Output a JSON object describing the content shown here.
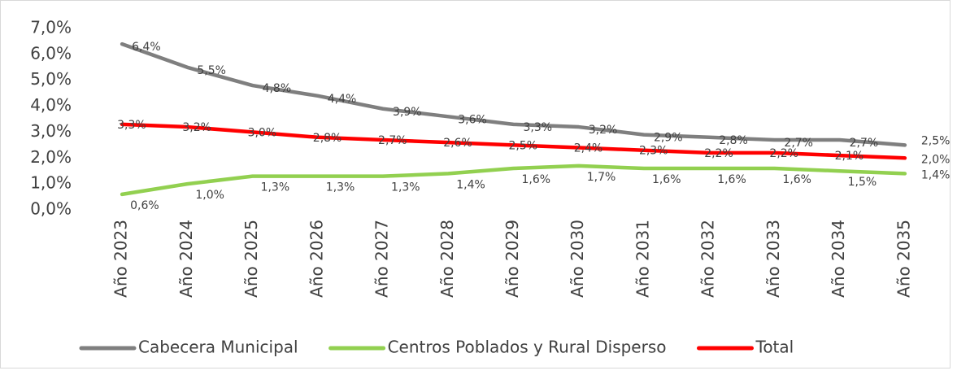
{
  "chart_data": {
    "type": "line",
    "categories": [
      "Año 2023",
      "Año 2024",
      "Año 2025",
      "Año 2026",
      "Año 2027",
      "Año 2028",
      "Año 2029",
      "Año 2030",
      "Año 2031",
      "Año 2032",
      "Año 2033",
      "Año 2034",
      "Año 2035"
    ],
    "series": [
      {
        "name": "Cabecera Municipal",
        "color": "#7f7f7f",
        "values": [
          6.4,
          5.5,
          4.8,
          4.4,
          3.9,
          3.6,
          3.3,
          3.2,
          2.9,
          2.8,
          2.7,
          2.7,
          2.5
        ],
        "value_labels": [
          "6,4%",
          "5,5%",
          "4,8%",
          "4,4%",
          "3,9%",
          "3,6%",
          "3,3%",
          "3,2%",
          "2,9%",
          "2,8%",
          "2,7%",
          "2,7%",
          "2,5%"
        ]
      },
      {
        "name": "Centros Poblados y Rural Disperso",
        "color": "#92d050",
        "values": [
          0.6,
          1.0,
          1.3,
          1.3,
          1.3,
          1.4,
          1.6,
          1.7,
          1.6,
          1.6,
          1.6,
          1.5,
          1.4
        ],
        "value_labels": [
          "0,6%",
          "1,0%",
          "1,3%",
          "1,3%",
          "1,3%",
          "1,4%",
          "1,6%",
          "1,7%",
          "1,6%",
          "1,6%",
          "1,6%",
          "1,5%",
          "1,4%"
        ]
      },
      {
        "name": "Total",
        "color": "#ff0000",
        "values": [
          3.3,
          3.2,
          3.0,
          2.8,
          2.7,
          2.6,
          2.5,
          2.4,
          2.3,
          2.2,
          2.2,
          2.1,
          2.0
        ],
        "value_labels": [
          "3,3%",
          "3,2%",
          "3,0%",
          "2,8%",
          "2,7%",
          "2,6%",
          "2,5%",
          "2,4%",
          "2,3%",
          "2,2%",
          "2,2%",
          "2,1%",
          "2,0%"
        ]
      }
    ],
    "ylim": [
      0,
      7
    ],
    "yticks": [
      {
        "value": 0,
        "label": "0,0%"
      },
      {
        "value": 1,
        "label": "1,0%"
      },
      {
        "value": 2,
        "label": "2,0%"
      },
      {
        "value": 3,
        "label": "3,0%"
      },
      {
        "value": 4,
        "label": "4,0%"
      },
      {
        "value": 5,
        "label": "5,0%"
      },
      {
        "value": 6,
        "label": "6,0%"
      },
      {
        "value": 7,
        "label": "7,0%"
      }
    ],
    "grid": false,
    "legend": "bottom"
  }
}
